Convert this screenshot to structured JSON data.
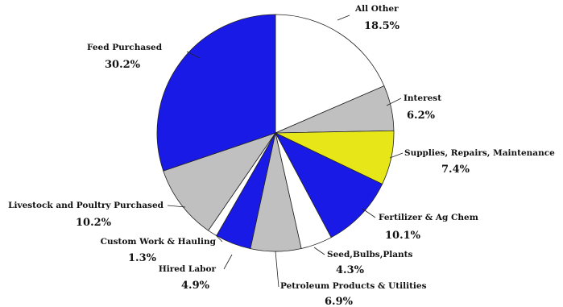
{
  "chart_data": {
    "type": "pie",
    "title": "",
    "start": "12 o'clock",
    "direction": "clockwise",
    "slices": [
      {
        "label": "All Other",
        "value": 18.5,
        "value_label": "18.5%",
        "color": "#ffffff"
      },
      {
        "label": "Interest",
        "value": 6.2,
        "value_label": "6.2%",
        "color": "#c0c0c0"
      },
      {
        "label": "Supplies, Repairs, Maintenance",
        "value": 7.4,
        "value_label": "7.4%",
        "color": "#e6e619"
      },
      {
        "label": "Fertilizer & Ag Chem",
        "value": 10.1,
        "value_label": "10.1%",
        "color": "#1a1ae6"
      },
      {
        "label": "Seed,Bulbs,Plants",
        "value": 4.3,
        "value_label": "4.3%",
        "color": "#ffffff"
      },
      {
        "label": "Petroleum Products & Utilities",
        "value": 6.9,
        "value_label": "6.9%",
        "color": "#c0c0c0"
      },
      {
        "label": "Hired Labor",
        "value": 4.9,
        "value_label": "4.9%",
        "color": "#1a1ae6"
      },
      {
        "label": "Custom Work & Hauling",
        "value": 1.3,
        "value_label": "1.3%",
        "color": "#ffffff"
      },
      {
        "label": "Livestock and Poultry Purchased",
        "value": 10.2,
        "value_label": "10.2%",
        "color": "#c0c0c0"
      },
      {
        "label": "Feed Purchased",
        "value": 30.2,
        "value_label": "30.2%",
        "color": "#1a1ae6"
      }
    ]
  }
}
